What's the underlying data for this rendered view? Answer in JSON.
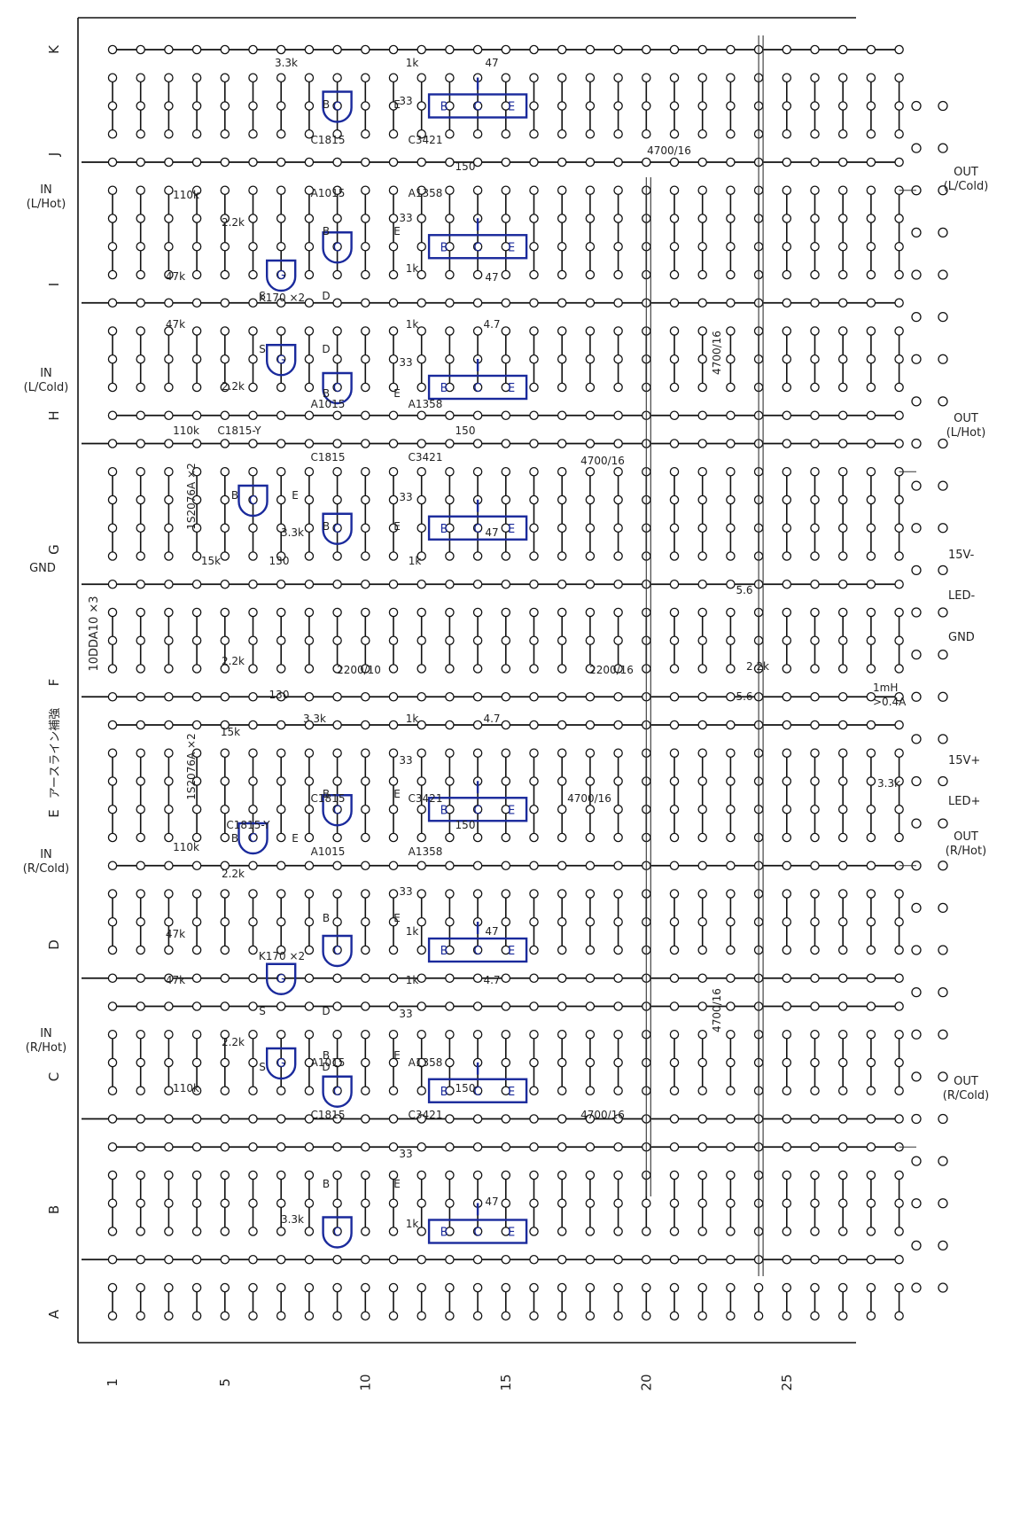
{
  "row_labels": [
    "K",
    "J",
    "I",
    "H",
    "G",
    "F",
    "E",
    "D",
    "C",
    "B",
    "A"
  ],
  "column_labels": [
    "1",
    "5",
    "10",
    "15",
    "20",
    "25"
  ],
  "io_labels": {
    "in_l_hot": [
      "IN",
      "(L/Hot)"
    ],
    "in_l_cold": [
      "IN",
      "(L/Cold)"
    ],
    "in_r_cold": [
      "IN",
      "(R/Cold)"
    ],
    "in_r_hot": [
      "IN",
      "(R/Hot)"
    ],
    "gnd_left": "GND",
    "out_l_cold": [
      "OUT",
      "(L/Cold)"
    ],
    "out_l_hot": [
      "OUT",
      "(L/Hot)"
    ],
    "out_r_hot": [
      "OUT",
      "(R/Hot)"
    ],
    "out_r_cold": [
      "OUT",
      "(R/Cold)"
    ],
    "v15_minus": "15V-",
    "led_minus": "LED-",
    "gnd_right": "GND",
    "v15_plus": "15V+",
    "led_plus": "LED+",
    "inductor": [
      "1mH",
      ">0.4A"
    ],
    "r_led": "3.3k"
  },
  "vertical_notes": {
    "diodes": "10DDA10 ×3",
    "earth_line": "アースライン補強"
  },
  "pins": {
    "b": "B",
    "c": "C",
    "e": "E",
    "g": "G",
    "s": "S",
    "d": "D"
  },
  "parts": {
    "c1815": "C1815",
    "c3421": "C3421",
    "a1015": "A1015",
    "a1358": "A1358",
    "k170": "K170 ×2",
    "c1815y": "C1815-Y",
    "diode_1s": "1S2076A ×2",
    "r1k": "1k",
    "r47": "47",
    "r4_7": "4.7",
    "r33": "33",
    "r150": "150",
    "r110k": "110k",
    "r2_2k": "2.2k",
    "r3_3k": "3.3k",
    "r15k": "15k",
    "r130": "130",
    "r5_6": "5.6",
    "r47k": "47k",
    "cap4700": "4700/16",
    "cap2200_10": "2200/10",
    "cap2200_16": "2200/16"
  }
}
